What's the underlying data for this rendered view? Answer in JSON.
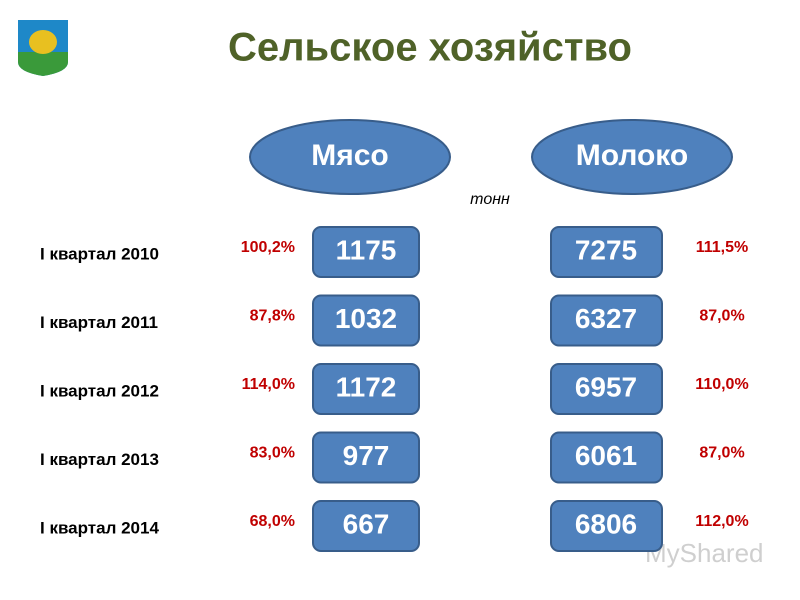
{
  "header": {
    "title": "Сельское хозяйство"
  },
  "columns": {
    "meat": "Мясо",
    "milk": "Молоко",
    "unit": "тонн"
  },
  "rows": [
    {
      "label": "I квартал 2010",
      "meat": "1175",
      "meat_pct": "100,2%",
      "milk": "7275",
      "milk_pct": "111,5%"
    },
    {
      "label": "I квартал 2011",
      "meat": "1032",
      "meat_pct": "87,8%",
      "milk": "6327",
      "milk_pct": "87,0%"
    },
    {
      "label": "I квартал 2012",
      "meat": "1172",
      "meat_pct": "114,0%",
      "milk": "6957",
      "milk_pct": "110,0%"
    },
    {
      "label": "I квартал 2013",
      "meat": "977",
      "meat_pct": "83,0%",
      "milk": "6061",
      "milk_pct": "87,0%"
    },
    {
      "label": "I квартал 2014",
      "meat": "667",
      "meat_pct": "68,0%",
      "milk": "6806",
      "milk_pct": "112,0%"
    }
  ],
  "watermark": "MyShared"
}
